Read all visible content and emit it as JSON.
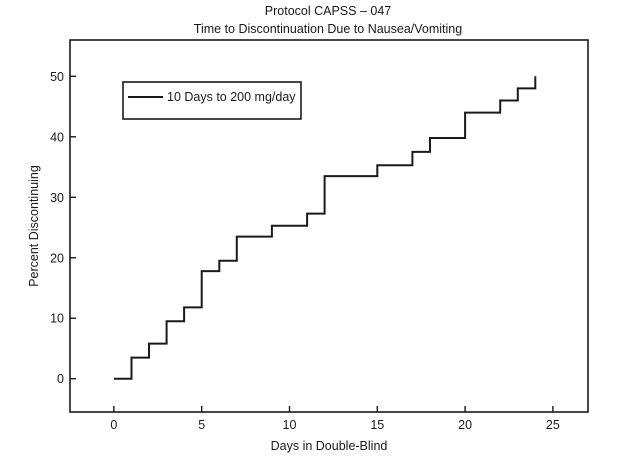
{
  "chart_data": {
    "type": "line",
    "step": true,
    "title": "Protocol CAPSS – 047",
    "subtitle": "Time to Discontinuation Due to Nausea/Vomiting",
    "xlabel": "Days in Double-Blind",
    "ylabel": "Percent Discontinuing",
    "xlim": [
      -2.5,
      27
    ],
    "ylim": [
      -5.5,
      56
    ],
    "xticks": [
      0,
      5,
      10,
      15,
      20,
      25
    ],
    "yticks": [
      0,
      10,
      20,
      30,
      40,
      50
    ],
    "legend": {
      "placement": "top-left",
      "boxed": true
    },
    "grid": false,
    "series": [
      {
        "name": "10 Days to 200 mg/day",
        "color": "#1a1a1a",
        "x": [
          0,
          1,
          1,
          2,
          2,
          3,
          3,
          4,
          4,
          5,
          5,
          6,
          6,
          7,
          7,
          9,
          9,
          11,
          11,
          12,
          12,
          15,
          15,
          17,
          17,
          18,
          18,
          20,
          20,
          22,
          22,
          23,
          23,
          24,
          24
        ],
        "y": [
          0,
          0,
          3.5,
          3.5,
          5.8,
          5.8,
          9.5,
          9.5,
          11.8,
          11.8,
          17.8,
          17.8,
          19.5,
          19.5,
          23.5,
          23.5,
          25.3,
          25.3,
          27.3,
          27.3,
          33.5,
          33.5,
          35.3,
          35.3,
          37.5,
          37.5,
          39.8,
          39.8,
          44,
          44,
          46,
          46,
          48,
          48,
          50
        ]
      }
    ]
  }
}
